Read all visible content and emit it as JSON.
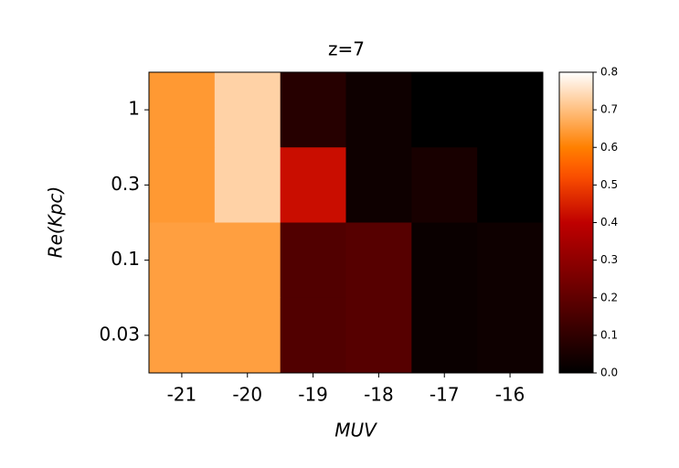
{
  "chart_data": {
    "type": "heatmap",
    "title": "z=7",
    "x_label": "MUV",
    "y_label": "Re(Kpc)",
    "x_categories": [
      "-21",
      "-20",
      "-19",
      "-18",
      "-17",
      "-16"
    ],
    "y_categories": [
      "1",
      "0.3",
      "0.1",
      "0.03"
    ],
    "z": [
      [
        0.64,
        0.73,
        0.08,
        0.03,
        0,
        0
      ],
      [
        0.64,
        0.73,
        0.42,
        0.03,
        0.05,
        0
      ],
      [
        0.65,
        0.65,
        0.17,
        0.18,
        0.02,
        0.03
      ],
      [
        0.65,
        0.65,
        0.17,
        0.18,
        0.02,
        0.03
      ]
    ],
    "colormap": "gist_heat",
    "clim": [
      0,
      0.8
    ],
    "cticks": [
      {
        "value": 0,
        "label": "0.0"
      },
      0.1,
      0.2,
      0.3,
      0.4,
      0.5,
      0.6,
      0.7,
      0.8
    ]
  }
}
